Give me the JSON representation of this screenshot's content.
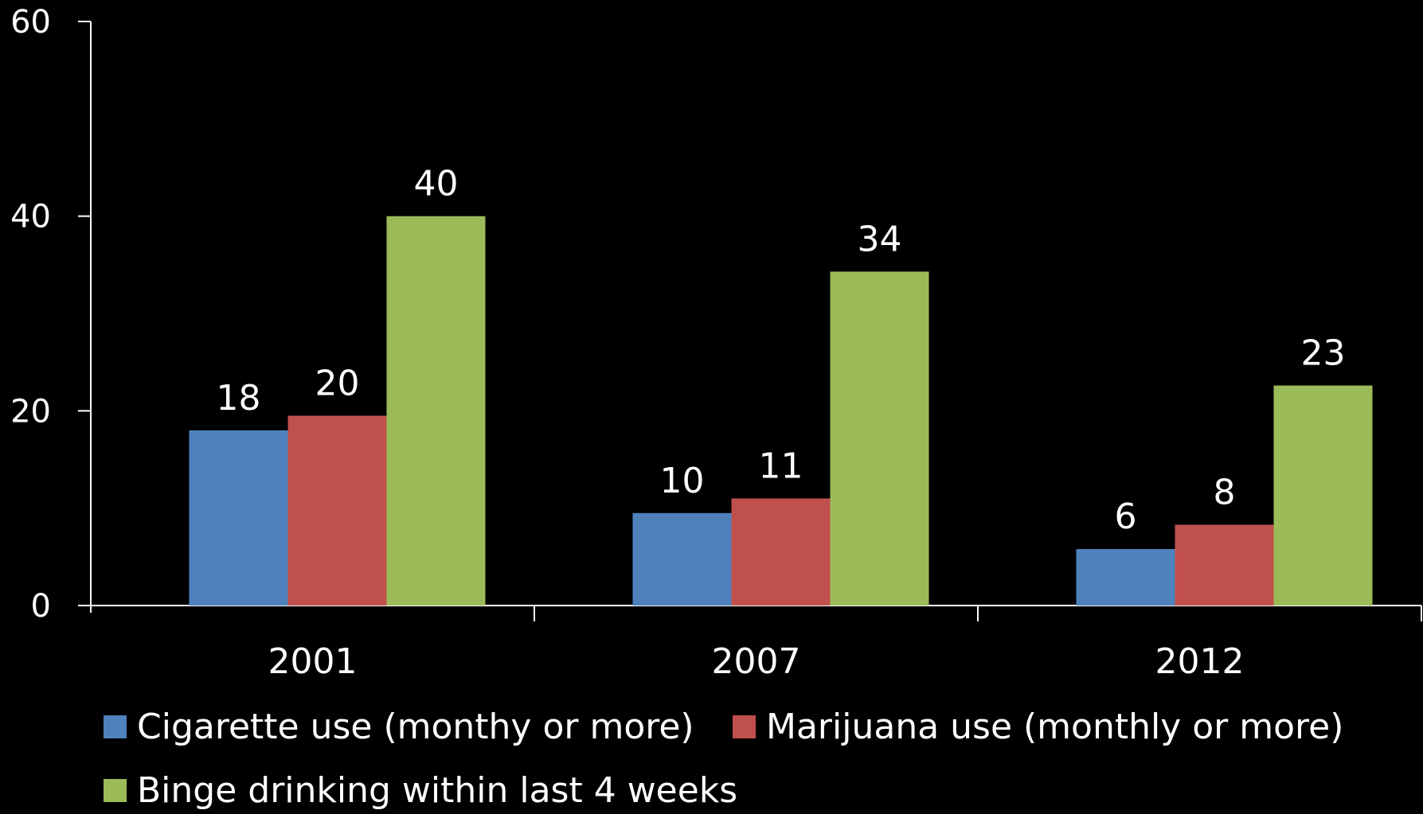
{
  "chart_data": {
    "type": "bar",
    "title": "",
    "xlabel": "",
    "ylabel": "",
    "ylim": [
      0,
      60
    ],
    "yticks": [
      0,
      20,
      40,
      60
    ],
    "grid": false,
    "legend_placement": "bottom",
    "categories": [
      "2001",
      "2007",
      "2012"
    ],
    "series": [
      {
        "name": "Cigarette use (monthy or more)",
        "color": "#4F81BD",
        "values": [
          18,
          9.5,
          5.8
        ],
        "labels": [
          "18",
          "10",
          "6"
        ]
      },
      {
        "name": "Marijuana use (monthly or more)",
        "color": "#C0504D",
        "values": [
          19.5,
          11,
          8.3
        ],
        "labels": [
          "20",
          "11",
          "8"
        ]
      },
      {
        "name": "Binge drinking within last 4 weeks",
        "color": "#9BBB59",
        "values": [
          40,
          34.3,
          22.6
        ],
        "labels": [
          "40",
          "34",
          "23"
        ]
      }
    ]
  }
}
